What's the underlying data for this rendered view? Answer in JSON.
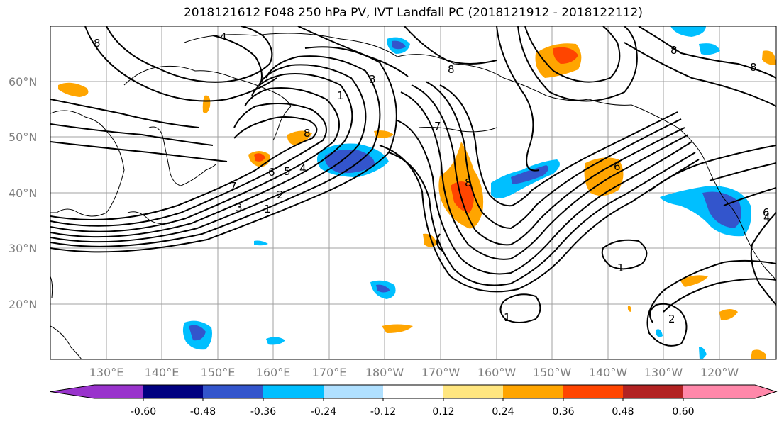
{
  "title": "2018121612 F048 250 hPa PV, IVT Landfall PC (2018121912 - 2018122112)",
  "lat_labels": [
    "60°N",
    "50°N",
    "40°N",
    "30°N",
    "20°N"
  ],
  "lon_labels": [
    "130°E",
    "140°E",
    "150°E",
    "160°E",
    "170°E",
    "180°W",
    "170°W",
    "160°W",
    "150°W",
    "140°W",
    "130°W",
    "120°W"
  ],
  "contour_labels": [
    "4",
    "8",
    "8",
    "8",
    "8",
    "6",
    "8",
    "3",
    "1",
    "7",
    "6",
    "5",
    "4",
    "2",
    "3",
    "1",
    "7",
    "8",
    "6",
    "1",
    "2",
    "1",
    "4"
  ],
  "colorbar": {
    "ticks": [
      "-0.60",
      "-0.48",
      "-0.36",
      "-0.24",
      "-0.12",
      "0.12",
      "0.24",
      "0.36",
      "0.48",
      "0.60"
    ],
    "colors": [
      "#9933cc",
      "#000080",
      "#3355cc",
      "#00bfff",
      "#b0e0ff",
      "#ffffff",
      "#ffe680",
      "#ffa500",
      "#ff4500",
      "#b22222",
      "#ff88aa"
    ]
  },
  "colors": {
    "positive_low": "#ffa500",
    "positive_mid": "#ff4500",
    "negative_low": "#00bfff",
    "negative_mid": "#3355cc",
    "grid": "#a0a0a0"
  }
}
